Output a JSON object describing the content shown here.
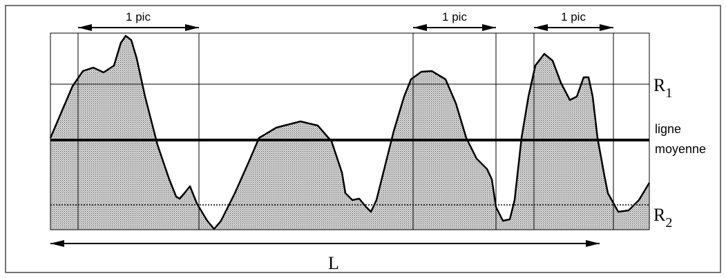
{
  "peak_labels": [
    "1 pic",
    "1 pic",
    "1 pic"
  ],
  "R1": {
    "base": "R",
    "sub": "1"
  },
  "mean_line": [
    "ligne",
    "moyenne"
  ],
  "R2": {
    "base": "R",
    "sub": "2"
  },
  "length_label": "L"
}
